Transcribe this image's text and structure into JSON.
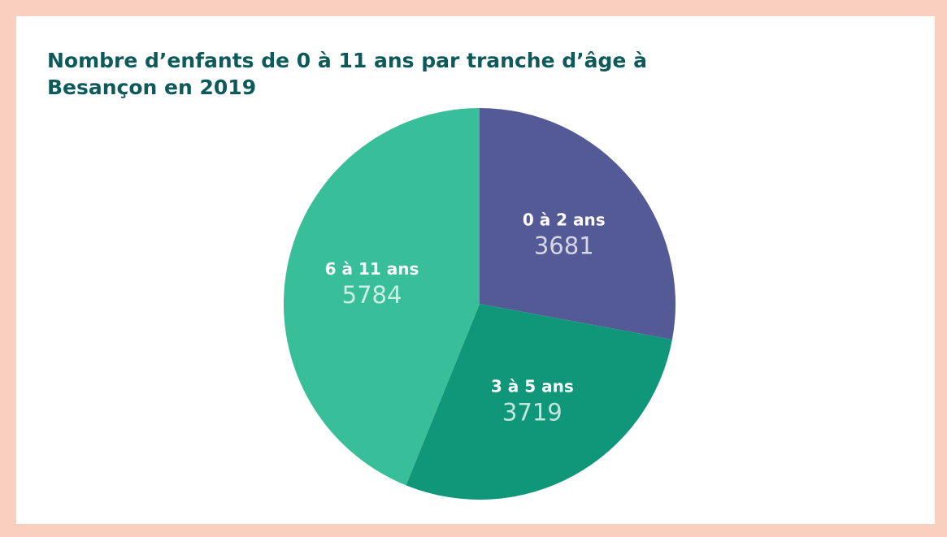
{
  "chart_data": {
    "type": "pie",
    "title": "Nombre d’enfants de 0 à 11 ans par tranche d’âge à Besançon en 2019",
    "categories": [
      "0 à 2 ans",
      "3 à 5 ans",
      "6 à 11 ans"
    ],
    "values": [
      3681,
      3719,
      5784
    ],
    "colors": [
      "#545a96",
      "#10977a",
      "#38be99"
    ]
  }
}
